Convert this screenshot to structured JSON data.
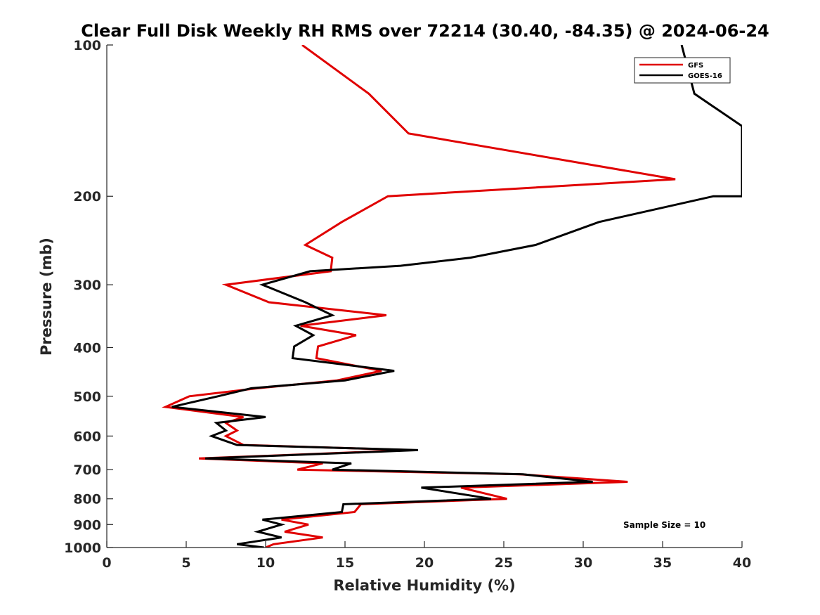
{
  "chart_data": {
    "type": "line",
    "title": "Clear Full Disk Weekly RH RMS over 72214 (30.40, -84.35) @ 2024-06-24",
    "xlabel": "Relative Humidity (%)",
    "ylabel": "Pressure (mb)",
    "xlim": [
      0,
      40
    ],
    "ylim": [
      100,
      1000
    ],
    "yscale": "log",
    "y_reversed": true,
    "grid": false,
    "x_ticks": [
      "0",
      "5",
      "10",
      "15",
      "20",
      "25",
      "30",
      "35",
      "40"
    ],
    "y_ticks": [
      "100",
      "200",
      "300",
      "400",
      "500",
      "600",
      "700",
      "800",
      "900",
      "1000"
    ],
    "legend_position": "top-right",
    "annotation": "Sample Size = 10",
    "series": [
      {
        "name": "GFS",
        "color": "#e00000",
        "points": [
          [
            12.3,
            100
          ],
          [
            16.5,
            125
          ],
          [
            19.0,
            150
          ],
          [
            35.8,
            185
          ],
          [
            17.7,
            200
          ],
          [
            14.8,
            225
          ],
          [
            12.5,
            250
          ],
          [
            14.2,
            265
          ],
          [
            14.1,
            282
          ],
          [
            7.5,
            300
          ],
          [
            10.2,
            325
          ],
          [
            17.6,
            345
          ],
          [
            12.2,
            362
          ],
          [
            15.7,
            378
          ],
          [
            13.3,
            398
          ],
          [
            13.2,
            420
          ],
          [
            17.3,
            445
          ],
          [
            14.5,
            465
          ],
          [
            9.5,
            482
          ],
          [
            5.2,
            500
          ],
          [
            3.7,
            525
          ],
          [
            8.6,
            550
          ],
          [
            7.5,
            565
          ],
          [
            8.2,
            585
          ],
          [
            7.5,
            600
          ],
          [
            8.6,
            625
          ],
          [
            19.2,
            640
          ],
          [
            5.8,
            665
          ],
          [
            13.6,
            680
          ],
          [
            12.0,
            700
          ],
          [
            26.0,
            715
          ],
          [
            32.8,
            740
          ],
          [
            22.3,
            760
          ],
          [
            25.2,
            800
          ],
          [
            16.0,
            820
          ],
          [
            15.6,
            850
          ],
          [
            11.0,
            880
          ],
          [
            12.7,
            900
          ],
          [
            11.2,
            930
          ],
          [
            13.6,
            955
          ],
          [
            10.5,
            985
          ],
          [
            10.0,
            1000
          ]
        ]
      },
      {
        "name": "GOES-16",
        "color": "#000000",
        "points": [
          [
            36.2,
            100
          ],
          [
            37.0,
            125
          ],
          [
            40.0,
            145
          ],
          [
            40.0,
            200
          ],
          [
            38.2,
            200
          ],
          [
            31.0,
            225
          ],
          [
            27.0,
            250
          ],
          [
            22.9,
            265
          ],
          [
            18.5,
            275
          ],
          [
            12.8,
            282
          ],
          [
            9.8,
            300
          ],
          [
            12.5,
            325
          ],
          [
            14.2,
            345
          ],
          [
            11.9,
            362
          ],
          [
            13.0,
            378
          ],
          [
            11.8,
            398
          ],
          [
            11.7,
            420
          ],
          [
            18.1,
            445
          ],
          [
            15.0,
            465
          ],
          [
            9.1,
            482
          ],
          [
            7.0,
            500
          ],
          [
            4.1,
            525
          ],
          [
            10.0,
            550
          ],
          [
            6.9,
            565
          ],
          [
            7.5,
            585
          ],
          [
            6.6,
            600
          ],
          [
            8.2,
            625
          ],
          [
            19.6,
            640
          ],
          [
            6.2,
            665
          ],
          [
            15.4,
            680
          ],
          [
            14.2,
            700
          ],
          [
            26.2,
            715
          ],
          [
            30.6,
            740
          ],
          [
            19.8,
            760
          ],
          [
            24.2,
            800
          ],
          [
            14.9,
            820
          ],
          [
            14.8,
            850
          ],
          [
            9.8,
            880
          ],
          [
            11.0,
            900
          ],
          [
            9.5,
            930
          ],
          [
            11.0,
            955
          ],
          [
            8.2,
            985
          ],
          [
            9.9,
            1000
          ]
        ]
      }
    ]
  }
}
